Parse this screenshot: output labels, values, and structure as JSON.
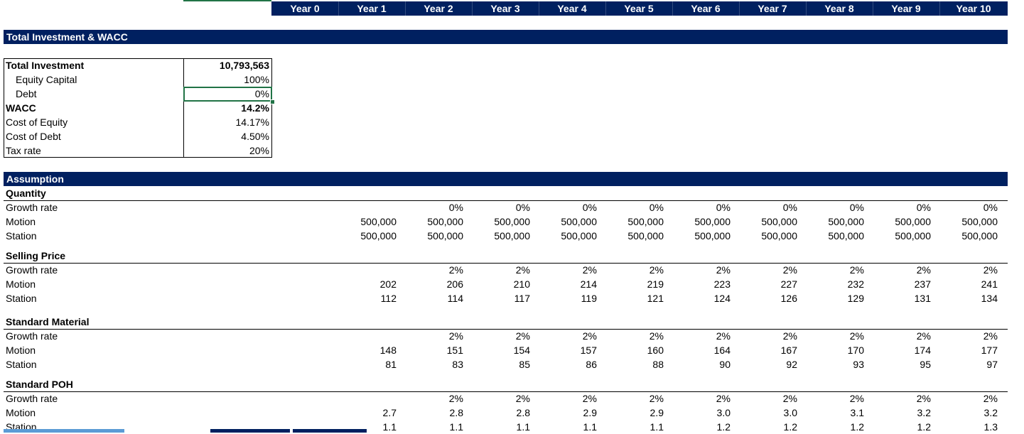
{
  "years": [
    "Year 0",
    "Year 1",
    "Year 2",
    "Year 3",
    "Year 4",
    "Year 5",
    "Year 6",
    "Year 7",
    "Year 8",
    "Year 9",
    "Year 10"
  ],
  "investment_section": {
    "title": "Total Investment & WACC",
    "rows": [
      {
        "label": "Total Investment",
        "value": "10,793,563",
        "bold": true,
        "indent": false
      },
      {
        "label": "Equity Capital",
        "value": "100%",
        "bold": false,
        "indent": true
      },
      {
        "label": "Debt",
        "value": "0%",
        "bold": false,
        "indent": true
      },
      {
        "label": "WACC",
        "value": "14.2%",
        "bold": true,
        "indent": false
      },
      {
        "label": "Cost of Equity",
        "value": "14.17%",
        "bold": false,
        "indent": false
      },
      {
        "label": "Cost of Debt",
        "value": "4.50%",
        "bold": false,
        "indent": false
      },
      {
        "label": "Tax rate",
        "value": "20%",
        "bold": false,
        "indent": false
      }
    ]
  },
  "assumption_section": {
    "title": "Assumption",
    "groups": [
      {
        "name": "Quantity",
        "rows": [
          {
            "label": "Growth rate",
            "values": [
              "",
              "",
              "0%",
              "0%",
              "0%",
              "0%",
              "0%",
              "0%",
              "0%",
              "0%",
              "0%"
            ]
          },
          {
            "label": "Motion",
            "values": [
              "",
              "500,000",
              "500,000",
              "500,000",
              "500,000",
              "500,000",
              "500,000",
              "500,000",
              "500,000",
              "500,000",
              "500,000"
            ]
          },
          {
            "label": "Station",
            "values": [
              "",
              "500,000",
              "500,000",
              "500,000",
              "500,000",
              "500,000",
              "500,000",
              "500,000",
              "500,000",
              "500,000",
              "500,000"
            ]
          }
        ]
      },
      {
        "name": "Selling Price",
        "rows": [
          {
            "label": "Growth rate",
            "values": [
              "",
              "",
              "2%",
              "2%",
              "2%",
              "2%",
              "2%",
              "2%",
              "2%",
              "2%",
              "2%"
            ]
          },
          {
            "label": "Motion",
            "values": [
              "",
              "202",
              "206",
              "210",
              "214",
              "219",
              "223",
              "227",
              "232",
              "237",
              "241"
            ]
          },
          {
            "label": "Station",
            "values": [
              "",
              "112",
              "114",
              "117",
              "119",
              "121",
              "124",
              "126",
              "129",
              "131",
              "134"
            ]
          }
        ]
      },
      {
        "name": "Standard Material",
        "rows": [
          {
            "label": "Growth rate",
            "values": [
              "",
              "",
              "2%",
              "2%",
              "2%",
              "2%",
              "2%",
              "2%",
              "2%",
              "2%",
              "2%"
            ]
          },
          {
            "label": "Motion",
            "values": [
              "",
              "148",
              "151",
              "154",
              "157",
              "160",
              "164",
              "167",
              "170",
              "174",
              "177"
            ]
          },
          {
            "label": "Station",
            "values": [
              "",
              "81",
              "83",
              "85",
              "86",
              "88",
              "90",
              "92",
              "93",
              "95",
              "97"
            ]
          }
        ]
      },
      {
        "name": "Standard POH",
        "rows": [
          {
            "label": "Growth rate",
            "values": [
              "",
              "",
              "2%",
              "2%",
              "2%",
              "2%",
              "2%",
              "2%",
              "2%",
              "2%",
              "2%"
            ]
          },
          {
            "label": "Motion",
            "values": [
              "",
              "2.7",
              "2.8",
              "2.8",
              "2.9",
              "2.9",
              "3.0",
              "3.0",
              "3.1",
              "3.2",
              "3.2"
            ]
          },
          {
            "label": "Station",
            "values": [
              "",
              "1.1",
              "1.1",
              "1.1",
              "1.1",
              "1.1",
              "1.2",
              "1.2",
              "1.2",
              "1.2",
              "1.3"
            ]
          }
        ]
      }
    ]
  },
  "colors": {
    "header_navy": "#002060",
    "selection_green": "#217346"
  }
}
